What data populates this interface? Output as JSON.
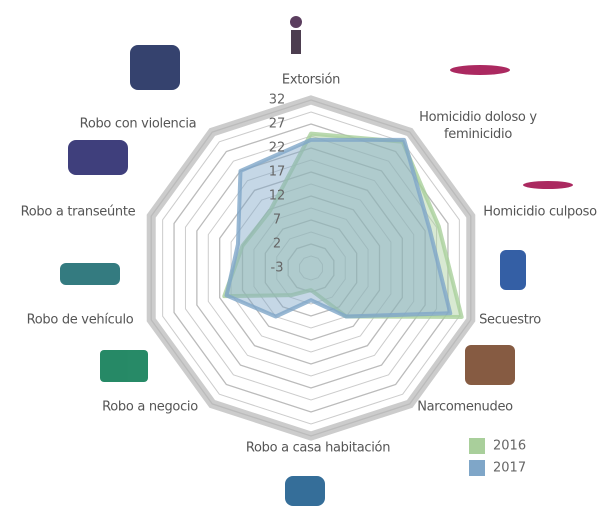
{
  "chart_data": {
    "type": "radar",
    "categories": [
      "Extorsión",
      "Homicidio doloso y feminicidio",
      "Homicidio culposo",
      "Secuestro",
      "Narcomenudeo",
      "Robo a casa habitación",
      "Robo a negocio",
      "Robo de vehículo",
      "Robo a transeúnte",
      "Robo con violencia"
    ],
    "series": [
      {
        "name": "2016",
        "color": "#a9cf9b",
        "values": [
          25,
          29.5,
          25,
          30,
          9.5,
          1.6,
          4,
          16,
          12,
          11.6
        ]
      },
      {
        "name": "2017",
        "color": "#7fa6c8",
        "values": [
          23.7,
          30,
          23,
          27.5,
          9.5,
          3.7,
          9.5,
          15.5,
          13,
          22
        ]
      }
    ],
    "ylim": [
      -3,
      32
    ],
    "yticks": [
      -3,
      2,
      7,
      12,
      17,
      22,
      27,
      32
    ],
    "grid": true
  }
}
